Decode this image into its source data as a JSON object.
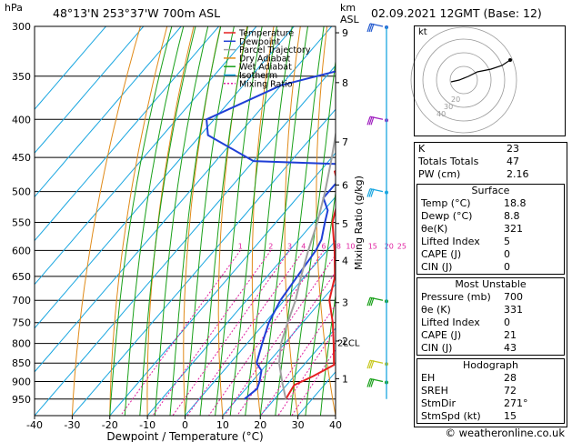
{
  "header": {
    "location": "48°13'N  253°37'W  700m  ASL",
    "datetime": "02.09.2021  12GMT  (Base: 12)",
    "km_label": "km",
    "asl_label": "ASL",
    "hpa_label": "hPa"
  },
  "legend": [
    {
      "name": "Temperature",
      "color": "#e62020"
    },
    {
      "name": "Dewpoint",
      "color": "#1f3fd6"
    },
    {
      "name": "Parcel Trajectory",
      "color": "#a0a0a0"
    },
    {
      "name": "Dry Adiabat",
      "color": "#e08a18"
    },
    {
      "name": "Wet Adiabat",
      "color": "#19a019"
    },
    {
      "name": "Isotherm",
      "color": "#19a6e0"
    },
    {
      "name": "Mixing Ratio",
      "color": "#e020a0"
    }
  ],
  "chart_data": {
    "type": "line",
    "xlabel": "Dewpoint / Temperature (°C)",
    "ylabel_right": "Mixing Ratio (g/kg)",
    "xlim": [
      -40,
      40
    ],
    "x_ticks": [
      -40,
      -30,
      -20,
      -10,
      0,
      10,
      20,
      30,
      40
    ],
    "pressure_levels": [
      300,
      350,
      400,
      450,
      500,
      550,
      600,
      650,
      700,
      750,
      800,
      850,
      900,
      950
    ],
    "km_ticks": [
      {
        "label": "9",
        "p": 306
      },
      {
        "label": "8",
        "p": 357
      },
      {
        "label": "7",
        "p": 429
      },
      {
        "label": "6",
        "p": 490
      },
      {
        "label": "5",
        "p": 552
      },
      {
        "label": "4",
        "p": 619
      },
      {
        "label": "3",
        "p": 705
      },
      {
        "label": "2",
        "p": 794
      },
      {
        "label": "1",
        "p": 892
      }
    ],
    "lcl": {
      "label": "LCL",
      "p": 797
    },
    "mixing_ratio_labels": [
      "1",
      "2",
      "3",
      "4",
      "6",
      "8",
      "10",
      "15",
      "20",
      "25"
    ],
    "series": [
      {
        "name": "Temperature",
        "color": "#e62020",
        "points": [
          [
            950,
            23
          ],
          [
            910,
            22
          ],
          [
            885,
            25
          ],
          [
            855,
            28
          ],
          [
            800,
            23
          ],
          [
            750,
            18
          ],
          [
            700,
            12
          ],
          [
            650,
            8
          ],
          [
            600,
            2
          ],
          [
            550,
            -5
          ],
          [
            500,
            -10
          ],
          [
            470,
            -16
          ],
          [
            455,
            -15
          ],
          [
            440,
            -15
          ],
          [
            400,
            -21
          ],
          [
            350,
            -31
          ],
          [
            300,
            -41
          ]
        ]
      },
      {
        "name": "Dewpoint",
        "color": "#1f3fd6",
        "points": [
          [
            950,
            12
          ],
          [
            920,
            13
          ],
          [
            900,
            12
          ],
          [
            870,
            10
          ],
          [
            850,
            7
          ],
          [
            800,
            4
          ],
          [
            750,
            1
          ],
          [
            700,
            -1
          ],
          [
            650,
            -2
          ],
          [
            600,
            -3
          ],
          [
            580,
            -4
          ],
          [
            550,
            -7
          ],
          [
            530,
            -9
          ],
          [
            510,
            -13
          ],
          [
            490,
            -13
          ],
          [
            460,
            -12
          ],
          [
            455,
            -40
          ],
          [
            420,
            -58
          ],
          [
            400,
            -62
          ],
          [
            360,
            -50
          ],
          [
            340,
            -35
          ],
          [
            315,
            -22
          ],
          [
            305,
            -45
          ],
          [
            300,
            -28
          ]
        ]
      },
      {
        "name": "Parcel Trajectory",
        "color": "#a0a0a0",
        "points": [
          [
            950,
            23
          ],
          [
            900,
            18
          ],
          [
            850,
            13
          ],
          [
            800,
            9
          ],
          [
            750,
            6
          ],
          [
            700,
            3
          ],
          [
            650,
            -1
          ],
          [
            600,
            -5
          ],
          [
            550,
            -9
          ],
          [
            500,
            -14
          ],
          [
            450,
            -20
          ],
          [
            400,
            -27
          ],
          [
            350,
            -35
          ],
          [
            300,
            -44
          ]
        ]
      }
    ]
  },
  "wind_barbs": [
    {
      "p": 300,
      "color": "#2a5fd0"
    },
    {
      "p": 400,
      "color": "#a020c0"
    },
    {
      "p": 500,
      "color": "#19a6e0"
    },
    {
      "p": 700,
      "color": "#19a019"
    },
    {
      "p": 850,
      "color": "#c8c820"
    },
    {
      "p": 900,
      "color": "#19a019"
    }
  ],
  "hodograph": {
    "label": "kt",
    "ring_labels": [
      "40",
      "30",
      "20"
    ]
  },
  "indices": [
    {
      "label": "K",
      "value": "23"
    },
    {
      "label": "Totals Totals",
      "value": "47"
    },
    {
      "label": "PW (cm)",
      "value": "2.16"
    }
  ],
  "surface": {
    "title": "Surface",
    "rows": [
      {
        "label": "Temp (°C)",
        "value": "18.8"
      },
      {
        "label": "Dewp (°C)",
        "value": "8.8"
      },
      {
        "label": "θe(K)",
        "value": "321"
      },
      {
        "label": "Lifted Index",
        "value": "5"
      },
      {
        "label": "CAPE (J)",
        "value": "0"
      },
      {
        "label": "CIN (J)",
        "value": "0"
      }
    ]
  },
  "most_unstable": {
    "title": "Most Unstable",
    "rows": [
      {
        "label": "Pressure (mb)",
        "value": "700"
      },
      {
        "label": "θe (K)",
        "value": "331"
      },
      {
        "label": "Lifted Index",
        "value": "0"
      },
      {
        "label": "CAPE (J)",
        "value": "21"
      },
      {
        "label": "CIN (J)",
        "value": "43"
      }
    ]
  },
  "hodograph_table": {
    "title": "Hodograph",
    "rows": [
      {
        "label": "EH",
        "value": "28"
      },
      {
        "label": "SREH",
        "value": "72"
      },
      {
        "label": "StmDir",
        "value": "271°"
      },
      {
        "label": "StmSpd (kt)",
        "value": "15"
      }
    ]
  },
  "footer": "© weatheronline.co.uk"
}
